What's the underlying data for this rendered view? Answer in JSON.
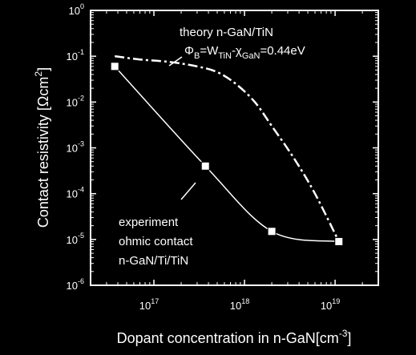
{
  "chart_data": {
    "type": "line",
    "x_scale": "log",
    "y_scale": "log",
    "xlim": [
      2e+16,
      3e+19
    ],
    "ylim": [
      1e-06,
      1
    ],
    "grid": false,
    "xlabel": {
      "text": "Dopant concentration in n-GaN[cm",
      "sup": "-3",
      "close": "]"
    },
    "ylabel": {
      "text": "Contact resistivity [",
      "omega": "Ω",
      "unit": "cm",
      "sup": "2",
      "close": "]"
    },
    "x_ticks": [
      {
        "base": "10",
        "exp": "17",
        "value": 1e+17
      },
      {
        "base": "10",
        "exp": "18",
        "value": 1e+18
      },
      {
        "base": "10",
        "exp": "19",
        "value": 1e+19
      }
    ],
    "y_ticks": [
      {
        "base": "10",
        "exp": "0",
        "value": 1
      },
      {
        "base": "10",
        "exp": "-1",
        "value": 0.1
      },
      {
        "base": "10",
        "exp": "-2",
        "value": 0.01
      },
      {
        "base": "10",
        "exp": "-3",
        "value": 0.001
      },
      {
        "base": "10",
        "exp": "-4",
        "value": 0.0001
      },
      {
        "base": "10",
        "exp": "-5",
        "value": 1e-05
      },
      {
        "base": "10",
        "exp": "-6",
        "value": 1e-06
      }
    ],
    "series": [
      {
        "style": "dash-dot",
        "color": "#ffffff",
        "x": [
          3.7e+16,
          7e+16,
          1.5e+17,
          3e+17,
          5e+17,
          8e+17,
          1.3e+18,
          2e+18,
          3.5e+18,
          6e+18,
          1.1e+19
        ],
        "y": [
          0.1,
          0.085,
          0.075,
          0.06,
          0.045,
          0.025,
          0.01,
          0.003,
          0.0006,
          0.0001,
          9e-06
        ]
      },
      {
        "style": "solid",
        "color": "#ffffff",
        "x": [
          3.7e+16,
          3.7e+17,
          2e+18,
          1.1e+19
        ],
        "y": [
          0.06,
          0.0004,
          1.5e-05,
          9e-06
        ],
        "markers": "square"
      }
    ],
    "annotations": {
      "theory": {
        "line1": "theory n-GaN/TiN",
        "phi": "Φ",
        "phi_sub": "B",
        "eq": "=W",
        "w_sub": "TiN",
        "minus": "-χ",
        "chi_sub": "GaN",
        "value": "=0.44eV"
      },
      "experiment": {
        "line1": "experiment",
        "line2": "ohmic contact",
        "line3": "n-GaN/Ti/TiN"
      }
    }
  }
}
